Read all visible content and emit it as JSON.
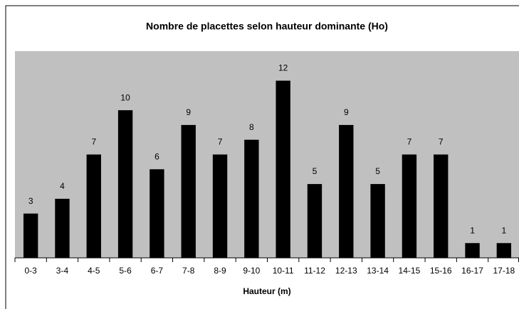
{
  "chart_data": {
    "type": "bar",
    "title": "Nombre de placettes selon  hauteur dominante (Ho)",
    "x_label": "Hauteur (m)",
    "categories": [
      "0-3",
      "3-4",
      "4-5",
      "5-6",
      "6-7",
      "7-8",
      "8-9",
      "9-10",
      "10-11",
      "11-12",
      "12-13",
      "13-14",
      "14-15",
      "15-16",
      "16-17",
      "17-18"
    ],
    "values": [
      3,
      4,
      7,
      10,
      6,
      9,
      7,
      8,
      12,
      5,
      9,
      5,
      7,
      7,
      1,
      1
    ],
    "color": "#000000",
    "ylim": [
      0,
      14
    ]
  }
}
